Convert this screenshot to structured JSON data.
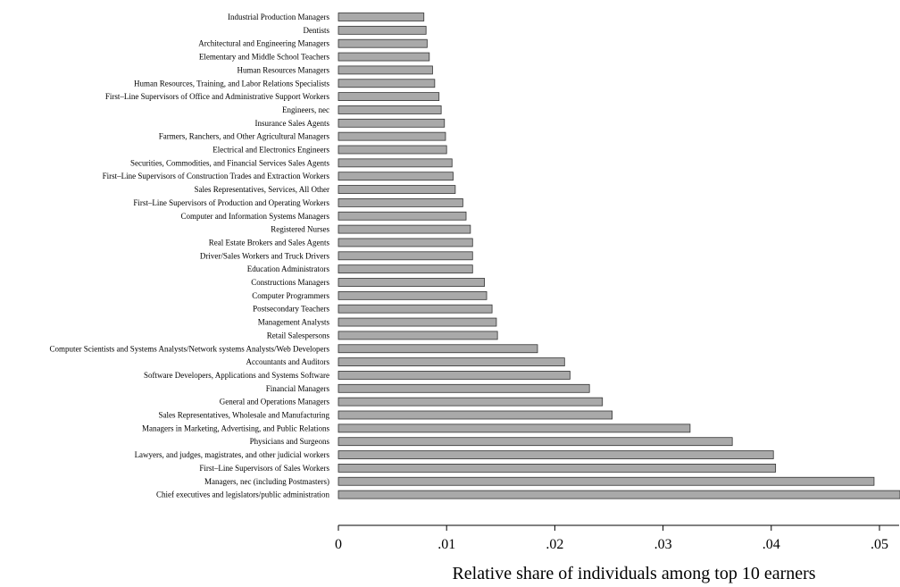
{
  "chart_data": {
    "type": "bar",
    "orientation": "horizontal",
    "xlabel": "Relative share of individuals among top 10 earners",
    "xlim": [
      0,
      0.052
    ],
    "xticks": [
      0,
      0.01,
      0.02,
      0.03,
      0.04,
      0.05
    ],
    "xtick_labels": [
      "0",
      ".01",
      ".02",
      ".03",
      ".04",
      ".05"
    ],
    "bar_color": "#a9a9a9",
    "categories": [
      "Industrial Production Managers",
      "Dentists",
      "Architectural and Engineering Managers",
      "Elementary and Middle School Teachers",
      "Human Resources Managers",
      "Human Resources, Training, and Labor Relations Specialists",
      "First–Line Supervisors of Office and Administrative Support Workers",
      "Engineers, nec",
      "Insurance Sales Agents",
      "Farmers, Ranchers, and Other Agricultural Managers",
      "Electrical and Electronics Engineers",
      "Securities, Commodities, and Financial Services Sales Agents",
      "First–Line Supervisors of Construction Trades and Extraction Workers",
      "Sales Representatives, Services, All Other",
      "First–Line Supervisors of Production and Operating Workers",
      "Computer and Information Systems Managers",
      "Registered Nurses",
      "Real Estate Brokers and Sales Agents",
      "Driver/Sales Workers and Truck Drivers",
      "Education Administrators",
      "Constructions Managers",
      "Computer Programmers",
      "Postsecondary Teachers",
      "Management Analysts",
      "Retail Salespersons",
      "Computer Scientists and Systems Analysts/Network systems Analysts/Web Developers",
      "Accountants and Auditors",
      "Software Developers, Applications and Systems Software",
      "Financial Managers",
      "General and Operations Managers",
      "Sales Representatives, Wholesale and Manufacturing",
      "Managers in Marketing, Advertising, and Public Relations",
      "Physicians and Surgeons",
      "Lawyers, and judges, magistrates, and other judicial workers",
      "First–Line Supervisors of Sales Workers",
      "Managers, nec (including Postmasters)",
      "Chief executives and legislators/public administration"
    ],
    "values": [
      0.0079,
      0.0081,
      0.0082,
      0.0084,
      0.0087,
      0.0089,
      0.0093,
      0.0095,
      0.0098,
      0.0099,
      0.01,
      0.0105,
      0.0106,
      0.0108,
      0.0115,
      0.0118,
      0.0122,
      0.0124,
      0.0124,
      0.0124,
      0.0135,
      0.0137,
      0.0142,
      0.0146,
      0.0147,
      0.0184,
      0.0209,
      0.0214,
      0.0232,
      0.0244,
      0.0253,
      0.0325,
      0.0364,
      0.0402,
      0.0404,
      0.0495,
      0.0525
    ]
  }
}
